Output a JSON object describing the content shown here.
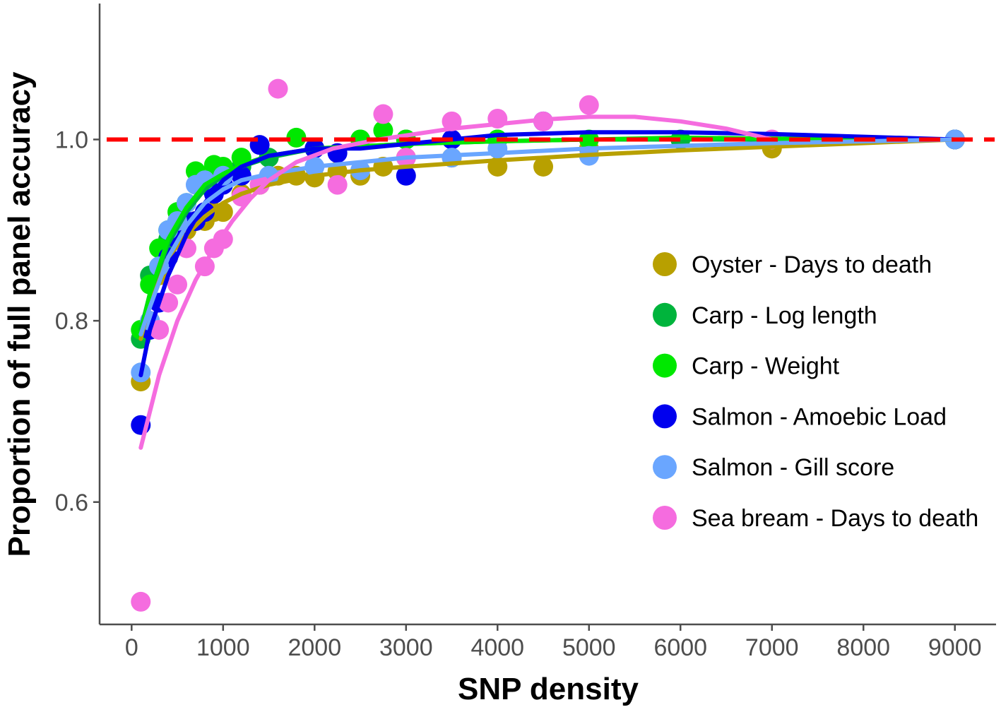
{
  "chart_data": {
    "type": "scatter",
    "title": "",
    "xlabel": "SNP density",
    "ylabel": "Proportion of full panel accuracy",
    "xlim": [
      -350,
      9450
    ],
    "ylim": [
      0.465,
      1.15
    ],
    "x_ticks": [
      "0",
      "1000",
      "2000",
      "3000",
      "4000",
      "5000",
      "6000",
      "7000",
      "8000",
      "9000"
    ],
    "x_tick_values": [
      0,
      1000,
      2000,
      3000,
      4000,
      5000,
      6000,
      7000,
      8000,
      9000
    ],
    "y_ticks": [
      "0.6",
      "0.8",
      "1.0"
    ],
    "y_tick_values": [
      0.6,
      0.8,
      1.0
    ],
    "reference_line": {
      "y": 1.0,
      "style": "dashed",
      "color": "#ff0000"
    },
    "grid": false,
    "legend_position": "right",
    "series": [
      {
        "name": "Oyster - Days to death",
        "color": "#b8a000",
        "points": [
          [
            100,
            0.733
          ],
          [
            200,
            0.8
          ],
          [
            300,
            0.85
          ],
          [
            400,
            0.87
          ],
          [
            500,
            0.89
          ],
          [
            600,
            0.9
          ],
          [
            700,
            0.91
          ],
          [
            800,
            0.91
          ],
          [
            900,
            0.92
          ],
          [
            1000,
            0.92
          ],
          [
            1200,
            0.94
          ],
          [
            1400,
            0.95
          ],
          [
            1600,
            0.96
          ],
          [
            1800,
            0.96
          ],
          [
            2000,
            0.958
          ],
          [
            2250,
            0.965
          ],
          [
            2500,
            0.96
          ],
          [
            2750,
            0.97
          ],
          [
            3000,
            0.98
          ],
          [
            3500,
            0.98
          ],
          [
            4000,
            0.97
          ],
          [
            4500,
            0.97
          ],
          [
            5000,
            0.99
          ],
          [
            7000,
            0.99
          ],
          [
            9000,
            1.0
          ]
        ],
        "curve": [
          [
            100,
            0.78
          ],
          [
            200,
            0.82
          ],
          [
            400,
            0.87
          ],
          [
            600,
            0.895
          ],
          [
            800,
            0.915
          ],
          [
            1000,
            0.93
          ],
          [
            1200,
            0.94
          ],
          [
            1500,
            0.95
          ],
          [
            2000,
            0.96
          ],
          [
            2500,
            0.966
          ],
          [
            3000,
            0.97
          ],
          [
            4000,
            0.977
          ],
          [
            5000,
            0.983
          ],
          [
            6000,
            0.988
          ],
          [
            7000,
            0.992
          ],
          [
            8000,
            0.996
          ],
          [
            9000,
            1.0
          ]
        ]
      },
      {
        "name": "Carp - Log length",
        "color": "#00b43c",
        "points": [
          [
            100,
            0.78
          ],
          [
            200,
            0.85
          ],
          [
            300,
            0.86
          ],
          [
            400,
            0.89
          ],
          [
            500,
            0.91
          ],
          [
            600,
            0.93
          ],
          [
            800,
            0.95
          ],
          [
            900,
            0.96
          ],
          [
            1000,
            0.96
          ],
          [
            1200,
            0.97
          ],
          [
            1500,
            0.98
          ],
          [
            2000,
            0.99
          ],
          [
            2500,
            1.0
          ],
          [
            3000,
            1.0
          ],
          [
            4000,
            1.0
          ],
          [
            6000,
            1.0
          ],
          [
            9000,
            1.0
          ]
        ],
        "curve": [
          [
            100,
            0.79
          ],
          [
            200,
            0.83
          ],
          [
            400,
            0.885
          ],
          [
            600,
            0.92
          ],
          [
            800,
            0.945
          ],
          [
            1000,
            0.96
          ],
          [
            1200,
            0.97
          ],
          [
            1500,
            0.98
          ],
          [
            2000,
            0.99
          ],
          [
            3000,
            0.995
          ],
          [
            4000,
            0.998
          ],
          [
            5000,
            1.0
          ],
          [
            6000,
            1.0
          ],
          [
            7000,
            1.0
          ],
          [
            9000,
            1.0
          ]
        ]
      },
      {
        "name": "Carp - Weight",
        "color": "#00e800",
        "points": [
          [
            100,
            0.79
          ],
          [
            200,
            0.84
          ],
          [
            300,
            0.88
          ],
          [
            400,
            0.9
          ],
          [
            500,
            0.92
          ],
          [
            700,
            0.965
          ],
          [
            900,
            0.972
          ],
          [
            1000,
            0.97
          ],
          [
            1200,
            0.98
          ],
          [
            1800,
            1.002
          ],
          [
            2000,
            0.99
          ],
          [
            2500,
            1.0
          ],
          [
            2750,
            1.01
          ],
          [
            3000,
            1.0
          ],
          [
            4000,
            1.0
          ],
          [
            5000,
            1.0
          ],
          [
            9000,
            1.0
          ]
        ],
        "curve": [
          [
            100,
            0.785
          ],
          [
            200,
            0.83
          ],
          [
            400,
            0.89
          ],
          [
            600,
            0.925
          ],
          [
            800,
            0.95
          ],
          [
            1000,
            0.962
          ],
          [
            1200,
            0.972
          ],
          [
            1500,
            0.982
          ],
          [
            2000,
            0.99
          ],
          [
            3000,
            0.995
          ],
          [
            4000,
            0.998
          ],
          [
            5000,
            1.0
          ],
          [
            6000,
            1.002
          ],
          [
            7000,
            1.001
          ],
          [
            9000,
            1.0
          ]
        ]
      },
      {
        "name": "Salmon - Amoebic Load",
        "color": "#0000ee",
        "points": [
          [
            100,
            0.685
          ],
          [
            200,
            0.79
          ],
          [
            300,
            0.82
          ],
          [
            400,
            0.87
          ],
          [
            500,
            0.89
          ],
          [
            600,
            0.91
          ],
          [
            700,
            0.91
          ],
          [
            800,
            0.92
          ],
          [
            900,
            0.94
          ],
          [
            1000,
            0.95
          ],
          [
            1200,
            0.96
          ],
          [
            1400,
            0.994
          ],
          [
            2000,
            0.99
          ],
          [
            2250,
            0.985
          ],
          [
            3000,
            0.96
          ],
          [
            3500,
            1.0
          ],
          [
            4500,
            1.02
          ],
          [
            9000,
            1.0
          ]
        ],
        "curve": [
          [
            100,
            0.74
          ],
          [
            200,
            0.79
          ],
          [
            400,
            0.85
          ],
          [
            600,
            0.895
          ],
          [
            800,
            0.93
          ],
          [
            1000,
            0.955
          ],
          [
            1200,
            0.97
          ],
          [
            1500,
            0.982
          ],
          [
            2000,
            0.99
          ],
          [
            2500,
            0.99
          ],
          [
            3000,
            0.995
          ],
          [
            4000,
            1.005
          ],
          [
            5000,
            1.008
          ],
          [
            6000,
            1.008
          ],
          [
            7000,
            1.006
          ],
          [
            8000,
            1.003
          ],
          [
            9000,
            1.0
          ]
        ]
      },
      {
        "name": "Salmon - Gill score",
        "color": "#6aa6ff",
        "points": [
          [
            100,
            0.743
          ],
          [
            200,
            0.8
          ],
          [
            300,
            0.86
          ],
          [
            400,
            0.9
          ],
          [
            500,
            0.91
          ],
          [
            600,
            0.93
          ],
          [
            700,
            0.95
          ],
          [
            800,
            0.955
          ],
          [
            1000,
            0.96
          ],
          [
            1500,
            0.96
          ],
          [
            2000,
            0.97
          ],
          [
            2500,
            0.966
          ],
          [
            3500,
            0.98
          ],
          [
            4000,
            0.99
          ],
          [
            5000,
            0.982
          ],
          [
            9000,
            1.0
          ]
        ],
        "curve": [
          [
            100,
            0.785
          ],
          [
            200,
            0.815
          ],
          [
            400,
            0.87
          ],
          [
            600,
            0.905
          ],
          [
            800,
            0.93
          ],
          [
            1000,
            0.945
          ],
          [
            1200,
            0.955
          ],
          [
            1500,
            0.962
          ],
          [
            2000,
            0.97
          ],
          [
            2500,
            0.975
          ],
          [
            3000,
            0.98
          ],
          [
            4000,
            0.985
          ],
          [
            5000,
            0.99
          ],
          [
            6000,
            0.993
          ],
          [
            7000,
            0.996
          ],
          [
            9000,
            1.0
          ]
        ]
      },
      {
        "name": "Sea bream - Days to death",
        "color": "#f56cdf",
        "points": [
          [
            100,
            0.49
          ],
          [
            300,
            0.79
          ],
          [
            400,
            0.82
          ],
          [
            500,
            0.84
          ],
          [
            600,
            0.88
          ],
          [
            800,
            0.86
          ],
          [
            900,
            0.88
          ],
          [
            1000,
            0.89
          ],
          [
            1200,
            0.937
          ],
          [
            1400,
            0.95
          ],
          [
            1600,
            1.056
          ],
          [
            2250,
            0.95
          ],
          [
            2750,
            1.028
          ],
          [
            3000,
            0.98
          ],
          [
            3500,
            1.02
          ],
          [
            4000,
            1.023
          ],
          [
            4500,
            1.02
          ],
          [
            5000,
            1.038
          ],
          [
            7000,
            1.0
          ]
        ],
        "curve": [
          [
            100,
            0.66
          ],
          [
            300,
            0.74
          ],
          [
            500,
            0.8
          ],
          [
            700,
            0.845
          ],
          [
            900,
            0.88
          ],
          [
            1100,
            0.91
          ],
          [
            1300,
            0.935
          ],
          [
            1500,
            0.955
          ],
          [
            1800,
            0.975
          ],
          [
            2200,
            0.99
          ],
          [
            2700,
            1.0
          ],
          [
            3500,
            1.012
          ],
          [
            4500,
            1.022
          ],
          [
            5000,
            1.025
          ],
          [
            5500,
            1.025
          ],
          [
            6000,
            1.02
          ],
          [
            6500,
            1.012
          ],
          [
            7000,
            1.0
          ]
        ]
      }
    ]
  }
}
